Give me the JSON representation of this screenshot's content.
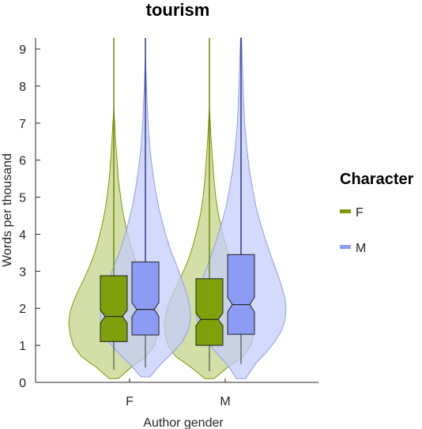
{
  "chart_data": {
    "type": "violin",
    "title": "tourism",
    "xlabel": "Author gender",
    "ylabel": "Words per thousand",
    "categories": [
      "F",
      "M"
    ],
    "ylim": [
      0,
      9.3
    ],
    "yticks": [
      0,
      1,
      2,
      3,
      4,
      5,
      6,
      7,
      8,
      9
    ],
    "legend": {
      "title": "Character",
      "position": "right",
      "entries": [
        {
          "label": "F",
          "color": "#7a9a01"
        },
        {
          "label": "M",
          "color": "#8c9cf5"
        }
      ]
    },
    "series": [
      {
        "name": "F",
        "color": "#7a9a01",
        "box_color": "#7fa00a",
        "violin_color": "#c4d48a",
        "groups": [
          {
            "category": "F",
            "q1": 1.1,
            "median": 1.78,
            "q3": 2.88,
            "notch_low": 1.6,
            "notch_high": 1.95,
            "whisker_low": 0.35,
            "whisker_high": 9.3,
            "violin_min": 0.1,
            "violin_max": 7.4,
            "density": [
              [
                0.1,
                0.1
              ],
              [
                0.4,
                0.38
              ],
              [
                0.7,
                0.72
              ],
              [
                1.0,
                0.9
              ],
              [
                1.3,
                0.97
              ],
              [
                1.6,
                1.0
              ],
              [
                1.9,
                0.97
              ],
              [
                2.2,
                0.89
              ],
              [
                2.5,
                0.78
              ],
              [
                2.8,
                0.66
              ],
              [
                3.1,
                0.55
              ],
              [
                3.4,
                0.45
              ],
              [
                3.8,
                0.35
              ],
              [
                4.2,
                0.27
              ],
              [
                4.6,
                0.2
              ],
              [
                5.0,
                0.15
              ],
              [
                5.5,
                0.1
              ],
              [
                6.0,
                0.07
              ],
              [
                6.5,
                0.04
              ],
              [
                7.0,
                0.02
              ],
              [
                7.4,
                0.0
              ]
            ]
          },
          {
            "category": "M",
            "q1": 1.0,
            "median": 1.7,
            "q3": 2.8,
            "notch_low": 1.53,
            "notch_high": 1.87,
            "whisker_low": 0.3,
            "whisker_high": 9.3,
            "violin_min": 0.1,
            "violin_max": 7.45,
            "density": [
              [
                0.1,
                0.1
              ],
              [
                0.4,
                0.4
              ],
              [
                0.7,
                0.75
              ],
              [
                1.0,
                0.92
              ],
              [
                1.3,
                0.98
              ],
              [
                1.6,
                1.0
              ],
              [
                1.9,
                0.96
              ],
              [
                2.2,
                0.88
              ],
              [
                2.5,
                0.77
              ],
              [
                2.8,
                0.65
              ],
              [
                3.1,
                0.54
              ],
              [
                3.4,
                0.44
              ],
              [
                3.8,
                0.34
              ],
              [
                4.2,
                0.26
              ],
              [
                4.6,
                0.19
              ],
              [
                5.0,
                0.14
              ],
              [
                5.5,
                0.1
              ],
              [
                6.0,
                0.07
              ],
              [
                6.5,
                0.04
              ],
              [
                7.0,
                0.02
              ],
              [
                7.45,
                0.0
              ]
            ]
          }
        ]
      },
      {
        "name": "M",
        "color": "#8c9cf5",
        "box_color": "#8c9cf5",
        "violin_color": "#c6cdfa",
        "groups": [
          {
            "category": "F",
            "q1": 1.28,
            "median": 1.97,
            "q3": 3.25,
            "notch_low": 1.78,
            "notch_high": 2.15,
            "whisker_low": 0.4,
            "whisker_high": 9.3,
            "violin_min": 0.15,
            "violin_max": 8.8,
            "density": [
              [
                0.15,
                0.1
              ],
              [
                0.5,
                0.35
              ],
              [
                0.8,
                0.6
              ],
              [
                1.1,
                0.82
              ],
              [
                1.4,
                0.95
              ],
              [
                1.7,
                1.0
              ],
              [
                2.0,
                0.99
              ],
              [
                2.3,
                0.94
              ],
              [
                2.6,
                0.86
              ],
              [
                2.9,
                0.77
              ],
              [
                3.2,
                0.68
              ],
              [
                3.5,
                0.58
              ],
              [
                3.9,
                0.47
              ],
              [
                4.3,
                0.38
              ],
              [
                4.7,
                0.3
              ],
              [
                5.2,
                0.22
              ],
              [
                5.7,
                0.16
              ],
              [
                6.3,
                0.1
              ],
              [
                7.0,
                0.06
              ],
              [
                7.8,
                0.03
              ],
              [
                8.8,
                0.0
              ]
            ]
          },
          {
            "category": "M",
            "q1": 1.3,
            "median": 2.1,
            "q3": 3.45,
            "notch_low": 1.9,
            "notch_high": 2.3,
            "whisker_low": 0.5,
            "whisker_high": 9.3,
            "violin_min": 0.1,
            "violin_max": 9.3,
            "density": [
              [
                0.1,
                0.1
              ],
              [
                0.5,
                0.32
              ],
              [
                0.8,
                0.55
              ],
              [
                1.1,
                0.75
              ],
              [
                1.4,
                0.9
              ],
              [
                1.7,
                0.98
              ],
              [
                2.0,
                1.0
              ],
              [
                2.3,
                0.97
              ],
              [
                2.6,
                0.9
              ],
              [
                2.9,
                0.82
              ],
              [
                3.2,
                0.73
              ],
              [
                3.5,
                0.64
              ],
              [
                3.9,
                0.53
              ],
              [
                4.3,
                0.43
              ],
              [
                4.7,
                0.34
              ],
              [
                5.2,
                0.26
              ],
              [
                5.7,
                0.19
              ],
              [
                6.3,
                0.13
              ],
              [
                7.0,
                0.08
              ],
              [
                7.8,
                0.05
              ],
              [
                8.6,
                0.03
              ],
              [
                9.3,
                0.01
              ]
            ]
          }
        ]
      }
    ]
  }
}
